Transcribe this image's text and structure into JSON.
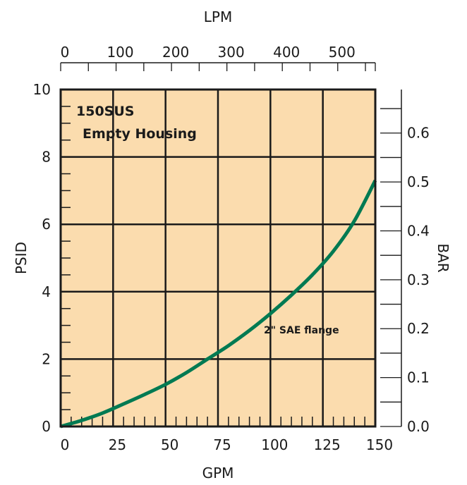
{
  "chart_data": {
    "type": "line",
    "annotation_lines": [
      "150SUS",
      "Empty Housing"
    ],
    "series_label": "2\" SAE flange",
    "x_bottom": {
      "label": "GPM",
      "range": [
        0,
        150
      ],
      "ticks": [
        0,
        25,
        50,
        75,
        100,
        125,
        150
      ],
      "tick_labels": [
        "0",
        "25",
        "50",
        "75",
        "100",
        "125",
        "150"
      ]
    },
    "x_top": {
      "label": "LPM",
      "range": [
        0,
        567.8
      ],
      "ticks": [
        0,
        100,
        200,
        300,
        400,
        500
      ],
      "tick_labels": [
        "0",
        "100",
        "200",
        "300",
        "400",
        "500"
      ]
    },
    "y_left": {
      "label": "PSID",
      "range": [
        0,
        10
      ],
      "ticks": [
        0,
        2,
        4,
        6,
        8,
        10
      ],
      "tick_labels": [
        "0",
        "2",
        "4",
        "6",
        "8",
        "10"
      ]
    },
    "y_right": {
      "label": "BAR",
      "range": [
        0,
        0.689
      ],
      "ticks": [
        0.0,
        0.1,
        0.2,
        0.3,
        0.4,
        0.5,
        0.6
      ],
      "tick_labels": [
        "0.0",
        "0.1",
        "0.2",
        "0.3",
        "0.4",
        "0.5",
        "0.6"
      ]
    },
    "grid": true,
    "series": [
      {
        "x": [
          0,
          10,
          20,
          30,
          40,
          50,
          60,
          70,
          80,
          90,
          100,
          110,
          120,
          130,
          140,
          150
        ],
        "y": [
          0.0,
          0.18,
          0.4,
          0.67,
          0.95,
          1.25,
          1.6,
          2.0,
          2.4,
          2.85,
          3.35,
          3.9,
          4.5,
          5.2,
          6.1,
          7.3
        ]
      }
    ],
    "colors": {
      "plot_background": "#fbdcae",
      "line": "#007a52",
      "grid": "#1a1a1a"
    }
  }
}
